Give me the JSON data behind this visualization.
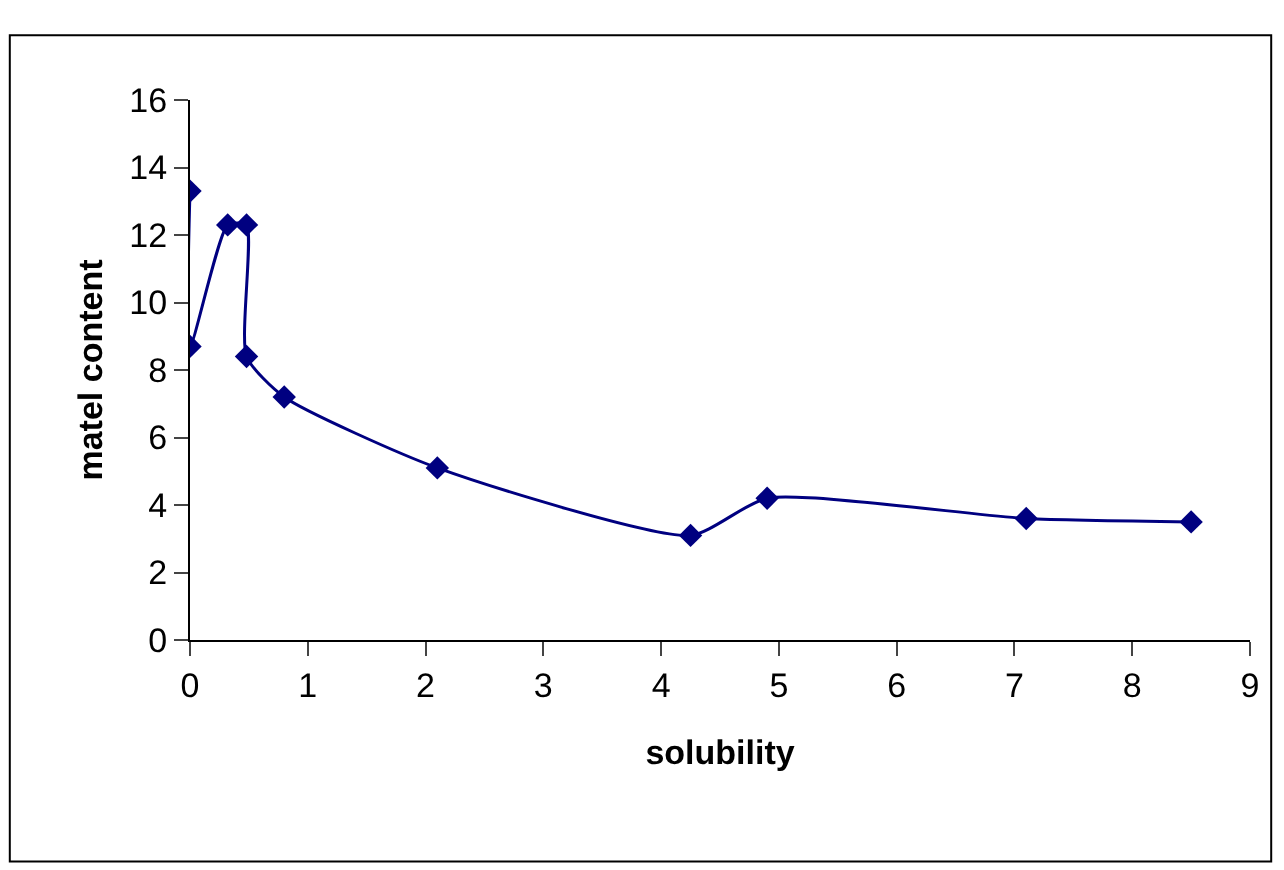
{
  "chart_data": {
    "type": "line",
    "xlabel": "solubility",
    "ylabel": "matel content",
    "series": [
      {
        "color": "#000080",
        "x": [
          0,
          0,
          0.32,
          0.48,
          0.48,
          0.8,
          2.1,
          4.25,
          4.9,
          7.1,
          8.5
        ],
        "values": [
          13.3,
          8.7,
          12.3,
          12.3,
          8.4,
          7.2,
          5.1,
          3.1,
          4.2,
          3.6,
          3.5
        ]
      }
    ],
    "xlim": [
      0,
      9
    ],
    "xticks": [
      0,
      1,
      2,
      3,
      4,
      5,
      6,
      7,
      8,
      9
    ],
    "ylim": [
      0,
      16
    ],
    "yticks": [
      0,
      2,
      4,
      6,
      8,
      10,
      12,
      14,
      16
    ],
    "marker": "diamond",
    "line_style": "solid"
  }
}
